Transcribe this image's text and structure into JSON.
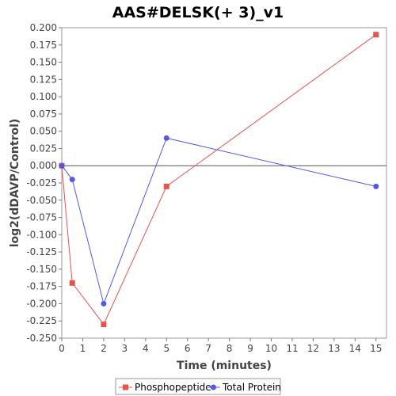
{
  "chart_data": {
    "type": "line",
    "title": "AAS#DELSK(+ 3)_v1",
    "xlabel": "Time (minutes)",
    "ylabel": "log2(dDAVP/Control)",
    "xlim": [
      0,
      15.5
    ],
    "ylim": [
      -0.25,
      0.2
    ],
    "x_ticks": [
      0,
      1,
      2,
      3,
      4,
      5,
      6,
      7,
      8,
      9,
      10,
      11,
      12,
      13,
      14,
      15
    ],
    "y_ticks": [
      0.2,
      0.175,
      0.15,
      0.125,
      0.1,
      0.075,
      0.05,
      0.025,
      0.0,
      -0.025,
      -0.05,
      -0.075,
      -0.1,
      -0.125,
      -0.15,
      -0.175,
      -0.2,
      -0.225,
      -0.25
    ],
    "y_tick_labels": [
      "0.200",
      "0.175",
      "0.150",
      "0.125",
      "0.100",
      "0.075",
      "0.050",
      "0.025",
      "0.000",
      "-0.025",
      "-0.050",
      "-0.075",
      "-0.100",
      "-0.125",
      "-0.150",
      "-0.175",
      "-0.200",
      "-0.225",
      "-0.250"
    ],
    "zero_line": true,
    "grid": false,
    "legend_position": "bottom",
    "series": [
      {
        "name": "Phosphopeptide",
        "color": "#e8534f",
        "marker": "square",
        "x": [
          0,
          0.5,
          2,
          5,
          15
        ],
        "y": [
          0.0,
          -0.17,
          -0.23,
          -0.03,
          0.19
        ]
      },
      {
        "name": "Total Protein",
        "color": "#5757e6",
        "marker": "circle",
        "x": [
          0,
          0.5,
          2,
          5,
          15
        ],
        "y": [
          0.0,
          -0.02,
          -0.2,
          0.04,
          -0.03
        ]
      }
    ]
  }
}
